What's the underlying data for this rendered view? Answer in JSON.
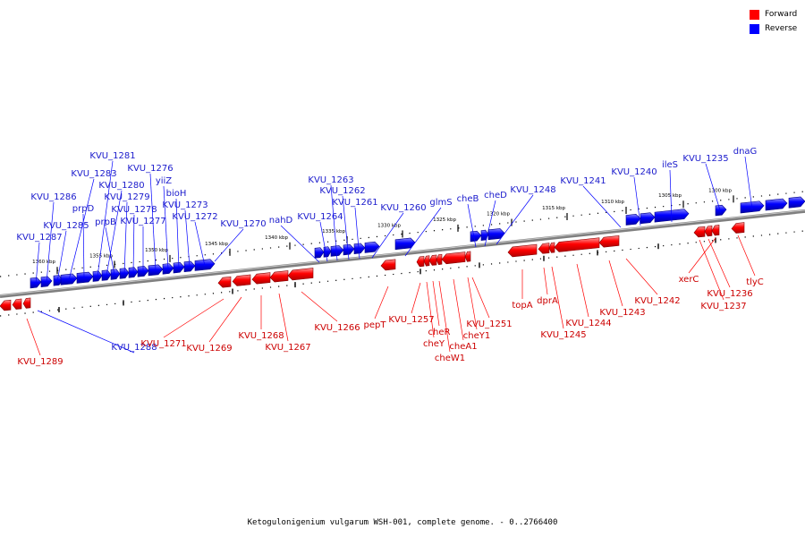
{
  "legend": {
    "forward_label": "Forward",
    "reverse_label": "Reverse",
    "forward_color": "#ff0000",
    "reverse_color": "#0000ff"
  },
  "caption": "Ketogulonigenium vulgarum WSH-001, complete genome. - 0..2766400",
  "colors": {
    "forward_label": "#cc0000",
    "reverse_label": "#1a1acc",
    "backbone": "#7f7f7f"
  },
  "ticks": [
    "1300 kbp",
    "1305 kbp",
    "1310 kbp",
    "1315 kbp",
    "1320 kbp",
    "1325 kbp",
    "1330 kbp",
    "1335 kbp",
    "1340 kbp",
    "1345 kbp",
    "1350 kbp",
    "1355 kbp",
    "1360 kbp"
  ],
  "genes": [
    {
      "name": "KVU_1289",
      "strand": "forward"
    },
    {
      "name": "KVU_1288",
      "strand": "reverse"
    },
    {
      "name": "KVU_1287",
      "strand": "reverse"
    },
    {
      "name": "KVU_1286",
      "strand": "reverse"
    },
    {
      "name": "KVU_1285",
      "strand": "reverse"
    },
    {
      "name": "KVU_1283",
      "strand": "reverse"
    },
    {
      "name": "prpD",
      "strand": "reverse"
    },
    {
      "name": "KVU_1281",
      "strand": "reverse"
    },
    {
      "name": "KVU_1280",
      "strand": "reverse"
    },
    {
      "name": "prpB",
      "strand": "reverse"
    },
    {
      "name": "KVU_1279",
      "strand": "reverse"
    },
    {
      "name": "KVU_1278",
      "strand": "reverse"
    },
    {
      "name": "KVU_1277",
      "strand": "reverse"
    },
    {
      "name": "KVU_1276",
      "strand": "reverse"
    },
    {
      "name": "yiiZ",
      "strand": "reverse"
    },
    {
      "name": "bioH",
      "strand": "reverse"
    },
    {
      "name": "KVU_1273",
      "strand": "reverse"
    },
    {
      "name": "KVU_1272",
      "strand": "reverse"
    },
    {
      "name": "KVU_1271",
      "strand": "forward"
    },
    {
      "name": "KVU_1270",
      "strand": "reverse"
    },
    {
      "name": "KVU_1269",
      "strand": "forward"
    },
    {
      "name": "KVU_1268",
      "strand": "forward"
    },
    {
      "name": "KVU_1267",
      "strand": "forward"
    },
    {
      "name": "KVU_1266",
      "strand": "forward"
    },
    {
      "name": "nahD",
      "strand": "reverse"
    },
    {
      "name": "KVU_1264",
      "strand": "reverse"
    },
    {
      "name": "KVU_1263",
      "strand": "reverse"
    },
    {
      "name": "KVU_1262",
      "strand": "reverse"
    },
    {
      "name": "KVU_1261",
      "strand": "reverse"
    },
    {
      "name": "pepT",
      "strand": "forward"
    },
    {
      "name": "KVU_1260",
      "strand": "reverse"
    },
    {
      "name": "glmS",
      "strand": "reverse"
    },
    {
      "name": "KVU_1257",
      "strand": "forward"
    },
    {
      "name": "cheY",
      "strand": "forward"
    },
    {
      "name": "cheR",
      "strand": "forward"
    },
    {
      "name": "cheW1",
      "strand": "forward"
    },
    {
      "name": "cheA1",
      "strand": "forward"
    },
    {
      "name": "cheY1",
      "strand": "forward"
    },
    {
      "name": "KVU_1251",
      "strand": "forward"
    },
    {
      "name": "cheB",
      "strand": "reverse"
    },
    {
      "name": "cheD",
      "strand": "reverse"
    },
    {
      "name": "KVU_1248",
      "strand": "reverse"
    },
    {
      "name": "topA",
      "strand": "forward"
    },
    {
      "name": "dprA",
      "strand": "forward"
    },
    {
      "name": "KVU_1245",
      "strand": "forward"
    },
    {
      "name": "KVU_1244",
      "strand": "forward"
    },
    {
      "name": "KVU_1243",
      "strand": "forward"
    },
    {
      "name": "KVU_1242",
      "strand": "forward"
    },
    {
      "name": "KVU_1241",
      "strand": "reverse"
    },
    {
      "name": "KVU_1240",
      "strand": "reverse"
    },
    {
      "name": "ileS",
      "strand": "reverse"
    },
    {
      "name": "KVU_1237",
      "strand": "forward"
    },
    {
      "name": "KVU_1236",
      "strand": "forward"
    },
    {
      "name": "xerC",
      "strand": "forward"
    },
    {
      "name": "KVU_1235",
      "strand": "reverse"
    },
    {
      "name": "tlyC",
      "strand": "forward"
    },
    {
      "name": "dnaG",
      "strand": "reverse"
    }
  ]
}
